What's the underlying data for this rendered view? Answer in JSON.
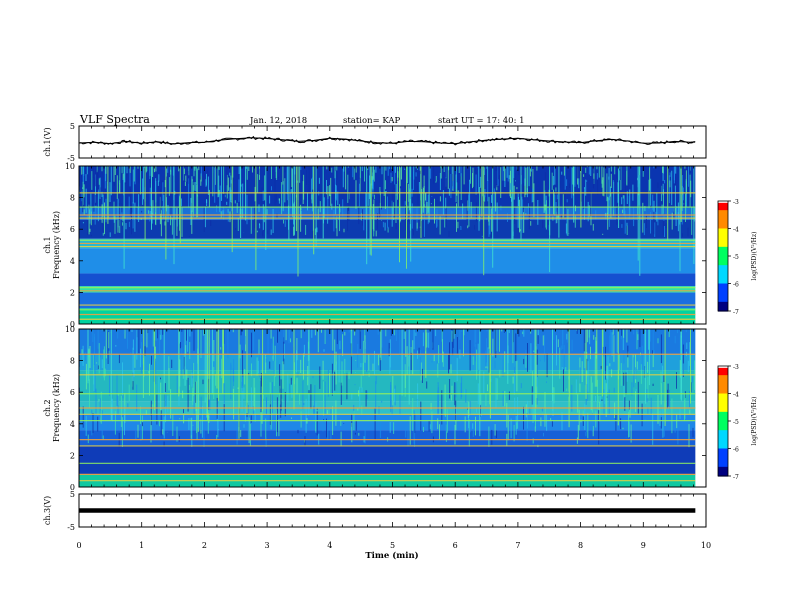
{
  "header": {
    "title": "VLF Spectra",
    "date": "Jan. 12, 2018",
    "station": "station= KAP",
    "start": "start UT = 17: 40: 1"
  },
  "chart_data": [
    {
      "type": "line",
      "name": "ch.1 waveform",
      "ylabel": "ch.1(V)",
      "ylim": [
        -5,
        5
      ],
      "yticks": [
        "5",
        "-5"
      ],
      "x": [
        0,
        0.25,
        0.5,
        0.75,
        1,
        1.25,
        1.5,
        1.75,
        2,
        2.25,
        2.5,
        2.75,
        3,
        3.25,
        3.5,
        3.75,
        4,
        4.25,
        4.5,
        4.75,
        5,
        5.25,
        5.5,
        5.75,
        6,
        6.25,
        6.5,
        6.75,
        7,
        7.25,
        7.5,
        7.75,
        8,
        8.25,
        8.5,
        8.75,
        9,
        9.25,
        9.5,
        9.75,
        9.83
      ],
      "values": [
        -0.3,
        -0.1,
        -0.5,
        0.2,
        -0.4,
        0.1,
        -0.6,
        -0.2,
        -0.1,
        0.6,
        1.0,
        1.3,
        1.1,
        0.7,
        0.2,
        0.5,
        1.2,
        0.9,
        0.3,
        -0.2,
        -0.4,
        0.2,
        0.1,
        -0.3,
        -0.5,
        0.1,
        0.6,
        0.9,
        1.2,
        0.7,
        0.3,
        0.0,
        -0.2,
        0.4,
        0.8,
        0.3,
        -0.4,
        -0.3,
        0.2,
        -0.1,
        0.1
      ]
    },
    {
      "type": "heatmap",
      "name": "ch.1 spectrogram",
      "ylabel": "ch.1 Frequency (kHz)",
      "ylim": [
        0,
        10
      ],
      "yticks": [
        "0",
        "2",
        "4",
        "6",
        "8",
        "10"
      ],
      "colorbar": {
        "label": "log(PSD)(V²/Hz)",
        "range": [
          -7,
          -3
        ],
        "ticks": [
          "-3",
          "-4",
          "-5",
          "-6",
          "-7"
        ]
      },
      "bands_khz": [
        [
          0,
          1,
          "#00d2a0"
        ],
        [
          1,
          2,
          "#1a6fe0"
        ],
        [
          2,
          2.4,
          "#30e0a8"
        ],
        [
          2.4,
          3.2,
          "#1550d0"
        ],
        [
          3.2,
          4.8,
          "#1f8ee8"
        ],
        [
          4.8,
          5.4,
          "#28b8d0"
        ],
        [
          5.4,
          6.6,
          "#0c3bb0"
        ],
        [
          6.6,
          7.4,
          "#1a70d8"
        ],
        [
          7.4,
          10,
          "#0a35b0"
        ]
      ],
      "lines_khz": [
        0.3,
        0.6,
        0.9,
        1.2,
        2.1,
        2.3,
        4.9,
        5.1,
        5.3,
        6.7,
        6.9,
        7.4,
        8.3
      ]
    },
    {
      "type": "heatmap",
      "name": "ch.2 spectrogram",
      "ylabel": "ch.2 Frequency (kHz)",
      "ylim": [
        0,
        10
      ],
      "yticks": [
        "0",
        "2",
        "4",
        "6",
        "8",
        "10"
      ],
      "colorbar": {
        "label": "log(PSD)(V²/Hz)",
        "range": [
          -7,
          -3
        ],
        "ticks": [
          "-3",
          "-4",
          "-5",
          "-6",
          "-7"
        ]
      },
      "bands_khz": [
        [
          0,
          0.8,
          "#10c8a0"
        ],
        [
          0.8,
          2.6,
          "#0f3cb8"
        ],
        [
          2.6,
          3.6,
          "#1660d8"
        ],
        [
          3.6,
          4.6,
          "#1f88e8"
        ],
        [
          4.6,
          5.4,
          "#30c0c8"
        ],
        [
          5.4,
          7.4,
          "#24b8c0"
        ],
        [
          7.4,
          8.4,
          "#1fa0dc"
        ],
        [
          8.4,
          10,
          "#1a7ae0"
        ]
      ],
      "lines_khz": [
        0.4,
        0.8,
        1.5,
        2.6,
        3.0,
        4.2,
        4.6,
        5.0,
        5.9,
        7.1,
        8.4
      ]
    },
    {
      "type": "line",
      "name": "ch.3 waveform",
      "ylabel": "ch.3(V)",
      "ylim": [
        -5,
        5
      ],
      "yticks": [
        "5",
        "-5"
      ],
      "x": [
        0,
        9.83
      ],
      "values": [
        0,
        0
      ]
    }
  ],
  "xaxis": {
    "label": "Time (min)",
    "range": [
      0,
      10
    ],
    "ticks": [
      "0",
      "1",
      "2",
      "3",
      "4",
      "5",
      "6",
      "7",
      "8",
      "9",
      "10"
    ]
  }
}
